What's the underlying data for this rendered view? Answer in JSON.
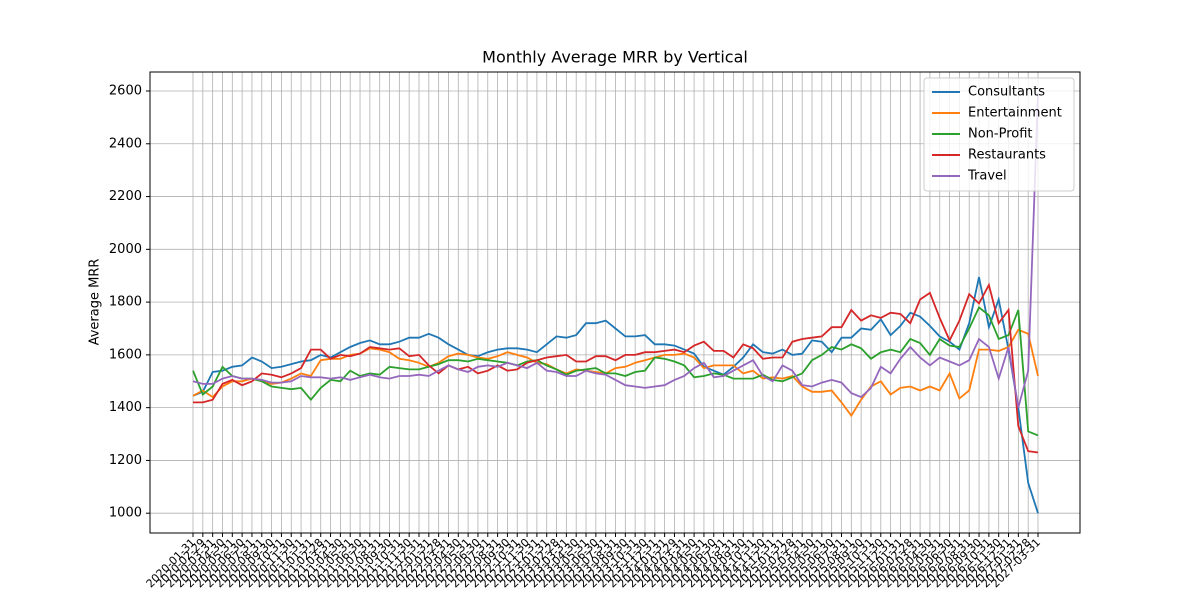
{
  "chart_data": {
    "type": "line",
    "title": "Monthly Average MRR by Vertical",
    "y_label": "Average MRR",
    "categories": [
      "2020-01-31",
      "2020-02-29",
      "2020-03-31",
      "2020-04-30",
      "2020-05-31",
      "2020-06-30",
      "2020-07-31",
      "2020-08-31",
      "2020-09-30",
      "2020-10-31",
      "2020-11-30",
      "2020-12-31",
      "2021-01-31",
      "2021-02-28",
      "2021-03-31",
      "2021-04-30",
      "2021-05-31",
      "2021-06-30",
      "2021-07-31",
      "2021-08-31",
      "2021-09-30",
      "2021-10-31",
      "2021-11-30",
      "2021-12-31",
      "2022-01-31",
      "2022-02-28",
      "2022-03-31",
      "2022-04-30",
      "2022-05-31",
      "2022-06-30",
      "2022-07-31",
      "2022-08-31",
      "2022-09-30",
      "2022-10-31",
      "2022-11-30",
      "2022-12-31",
      "2023-01-31",
      "2023-02-28",
      "2023-03-31",
      "2023-04-30",
      "2023-05-31",
      "2023-06-30",
      "2023-07-31",
      "2023-08-31",
      "2023-09-30",
      "2023-10-31",
      "2023-11-30",
      "2023-12-31",
      "2024-01-31",
      "2024-02-29",
      "2024-03-31",
      "2024-04-30",
      "2024-05-31",
      "2024-06-30",
      "2024-07-31",
      "2024-08-31",
      "2024-09-30",
      "2024-10-31",
      "2024-11-30",
      "2024-12-31",
      "2025-01-31",
      "2025-02-28",
      "2025-03-31",
      "2025-04-30",
      "2025-05-31",
      "2025-06-30",
      "2025-07-31",
      "2025-08-31",
      "2025-09-30",
      "2025-10-31",
      "2025-11-30",
      "2025-12-31",
      "2026-01-31",
      "2026-02-28",
      "2026-03-31",
      "2026-04-30",
      "2026-05-31",
      "2026-06-30",
      "2026-07-31",
      "2026-08-31",
      "2026-09-30",
      "2026-10-31",
      "2026-11-30",
      "2026-12-31",
      "2027-01-31",
      "2027-02-28",
      "2027-03-31"
    ],
    "series": [
      {
        "name": "Consultants",
        "color": "#1f77b4",
        "values": [
          1445,
          1460,
          1535,
          1540,
          1555,
          1560,
          1590,
          1575,
          1550,
          1555,
          1565,
          1575,
          1580,
          1600,
          1590,
          1610,
          1630,
          1645,
          1655,
          1640,
          1640,
          1650,
          1665,
          1665,
          1680,
          1665,
          1640,
          1620,
          1600,
          1595,
          1610,
          1620,
          1625,
          1625,
          1620,
          1610,
          1640,
          1670,
          1665,
          1675,
          1720,
          1720,
          1730,
          1700,
          1670,
          1670,
          1675,
          1640,
          1640,
          1635,
          1620,
          1605,
          1555,
          1540,
          1525,
          1555,
          1590,
          1640,
          1610,
          1605,
          1620,
          1600,
          1605,
          1655,
          1650,
          1610,
          1665,
          1665,
          1700,
          1695,
          1735,
          1675,
          1710,
          1760,
          1745,
          1710,
          1670,
          1650,
          1620,
          1720,
          1895,
          1705,
          1810,
          1620,
          1400,
          1115,
          1000
        ]
      },
      {
        "name": "Entertainment",
        "color": "#ff7f0e",
        "values": [
          1445,
          1465,
          1440,
          1480,
          1500,
          1500,
          1510,
          1500,
          1490,
          1495,
          1510,
          1530,
          1520,
          1580,
          1585,
          1585,
          1600,
          1605,
          1625,
          1620,
          1610,
          1585,
          1580,
          1570,
          1555,
          1570,
          1595,
          1605,
          1600,
          1590,
          1585,
          1595,
          1610,
          1600,
          1590,
          1570,
          1565,
          1545,
          1530,
          1545,
          1540,
          1535,
          1530,
          1550,
          1555,
          1570,
          1580,
          1590,
          1600,
          1600,
          1605,
          1590,
          1550,
          1560,
          1560,
          1560,
          1530,
          1540,
          1510,
          1515,
          1510,
          1520,
          1480,
          1460,
          1460,
          1465,
          1420,
          1370,
          1430,
          1480,
          1500,
          1450,
          1475,
          1480,
          1465,
          1480,
          1465,
          1530,
          1435,
          1465,
          1620,
          1620,
          1615,
          1630,
          1695,
          1680,
          1520
        ]
      },
      {
        "name": "Non-Profit",
        "color": "#2ca02c",
        "values": [
          1540,
          1450,
          1480,
          1555,
          1520,
          1510,
          1510,
          1500,
          1480,
          1475,
          1470,
          1475,
          1430,
          1475,
          1505,
          1500,
          1540,
          1520,
          1530,
          1525,
          1555,
          1550,
          1545,
          1545,
          1555,
          1565,
          1580,
          1580,
          1575,
          1585,
          1580,
          1575,
          1570,
          1560,
          1575,
          1580,
          1560,
          1545,
          1525,
          1540,
          1545,
          1550,
          1530,
          1530,
          1520,
          1535,
          1540,
          1590,
          1585,
          1575,
          1560,
          1515,
          1520,
          1530,
          1525,
          1510,
          1510,
          1510,
          1525,
          1505,
          1500,
          1515,
          1530,
          1580,
          1600,
          1630,
          1620,
          1640,
          1625,
          1585,
          1610,
          1620,
          1610,
          1660,
          1645,
          1600,
          1660,
          1635,
          1630,
          1700,
          1780,
          1750,
          1660,
          1675,
          1770,
          1310,
          1295
        ]
      },
      {
        "name": "Restaurants",
        "color": "#d62728",
        "values": [
          1420,
          1420,
          1430,
          1490,
          1505,
          1485,
          1500,
          1530,
          1525,
          1515,
          1530,
          1550,
          1620,
          1620,
          1585,
          1600,
          1595,
          1605,
          1630,
          1625,
          1620,
          1625,
          1595,
          1600,
          1560,
          1530,
          1560,
          1545,
          1555,
          1530,
          1540,
          1560,
          1540,
          1545,
          1570,
          1580,
          1590,
          1595,
          1600,
          1575,
          1575,
          1595,
          1595,
          1580,
          1600,
          1600,
          1610,
          1610,
          1615,
          1620,
          1610,
          1635,
          1650,
          1615,
          1615,
          1590,
          1640,
          1625,
          1585,
          1590,
          1590,
          1650,
          1660,
          1665,
          1670,
          1705,
          1705,
          1770,
          1730,
          1750,
          1740,
          1760,
          1755,
          1720,
          1810,
          1835,
          1740,
          1655,
          1730,
          1830,
          1795,
          1865,
          1720,
          1770,
          1330,
          1235,
          1230
        ]
      },
      {
        "name": "Travel",
        "color": "#9467bd",
        "values": [
          1500,
          1490,
          1490,
          1510,
          1520,
          1510,
          1510,
          1505,
          1495,
          1495,
          1500,
          1520,
          1515,
          1515,
          1510,
          1515,
          1505,
          1515,
          1525,
          1515,
          1510,
          1520,
          1520,
          1525,
          1520,
          1540,
          1560,
          1545,
          1535,
          1555,
          1560,
          1555,
          1570,
          1560,
          1550,
          1570,
          1540,
          1535,
          1520,
          1520,
          1540,
          1530,
          1525,
          1505,
          1485,
          1480,
          1475,
          1480,
          1485,
          1505,
          1520,
          1550,
          1570,
          1515,
          1520,
          1540,
          1560,
          1580,
          1520,
          1500,
          1560,
          1540,
          1485,
          1480,
          1495,
          1505,
          1495,
          1455,
          1440,
          1475,
          1555,
          1530,
          1585,
          1630,
          1590,
          1560,
          1590,
          1575,
          1560,
          1580,
          1660,
          1630,
          1510,
          1630,
          1400,
          1540,
          2590
        ]
      }
    ],
    "ylim": [
      925,
      2672
    ],
    "yticks": [
      1000,
      1200,
      1400,
      1600,
      1800,
      2000,
      2200,
      2400,
      2600
    ],
    "grid": true,
    "legend": "upper right"
  }
}
